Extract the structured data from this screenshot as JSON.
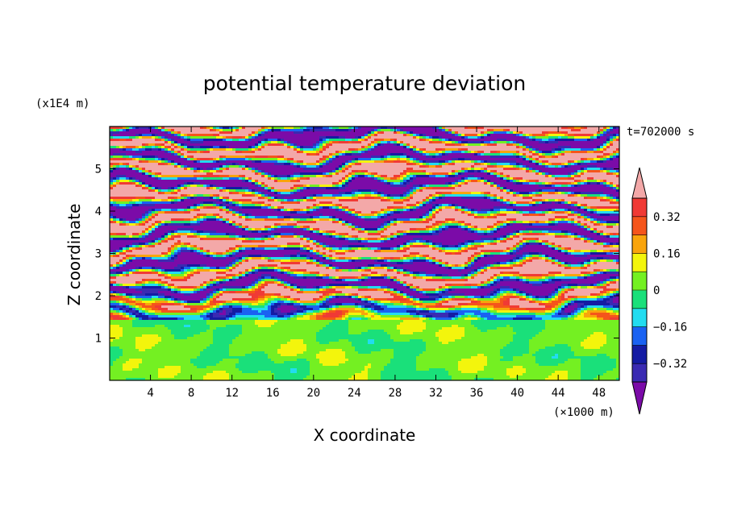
{
  "chart_data": {
    "type": "heatmap",
    "title": "potential temperature deviation",
    "xlabel": "X coordinate",
    "ylabel": "Z coordinate",
    "x_unit": "(×1000 m)",
    "y_unit": "(x1E4 m)",
    "time_label": "t=702000 s",
    "xlim": [
      0,
      50
    ],
    "ylim": [
      0,
      6
    ],
    "x_ticks": [
      4,
      8,
      12,
      16,
      20,
      24,
      28,
      32,
      36,
      40,
      44,
      48
    ],
    "y_ticks": [
      1,
      2,
      3,
      4,
      5
    ],
    "colorbar": {
      "levels": [
        -0.4,
        -0.32,
        -0.24,
        -0.16,
        -0.08,
        0,
        0.08,
        0.16,
        0.24,
        0.32,
        0.4
      ],
      "tick_values": [
        0.32,
        0.16,
        0,
        -0.16,
        -0.32
      ],
      "tick_labels": [
        "0.32",
        "0.16",
        "0",
        "−0.16",
        "−0.32"
      ],
      "colors": [
        "#7b0ba8",
        "#3a2ab2",
        "#141ba3",
        "#1a62f2",
        "#22dcf0",
        "#1ae07a",
        "#74f022",
        "#f3f50c",
        "#f9a40c",
        "#f5551b",
        "#f03a35",
        "#f3a8a8"
      ],
      "extend": "both"
    },
    "structure": "horizontally layered, wavy bands of alternating strong positive (pink) and strong negative (purple) deviation above about z = 1.5 (x1E4 m); weak near-zero green/yellow/cyan values below about z = 1.4"
  }
}
